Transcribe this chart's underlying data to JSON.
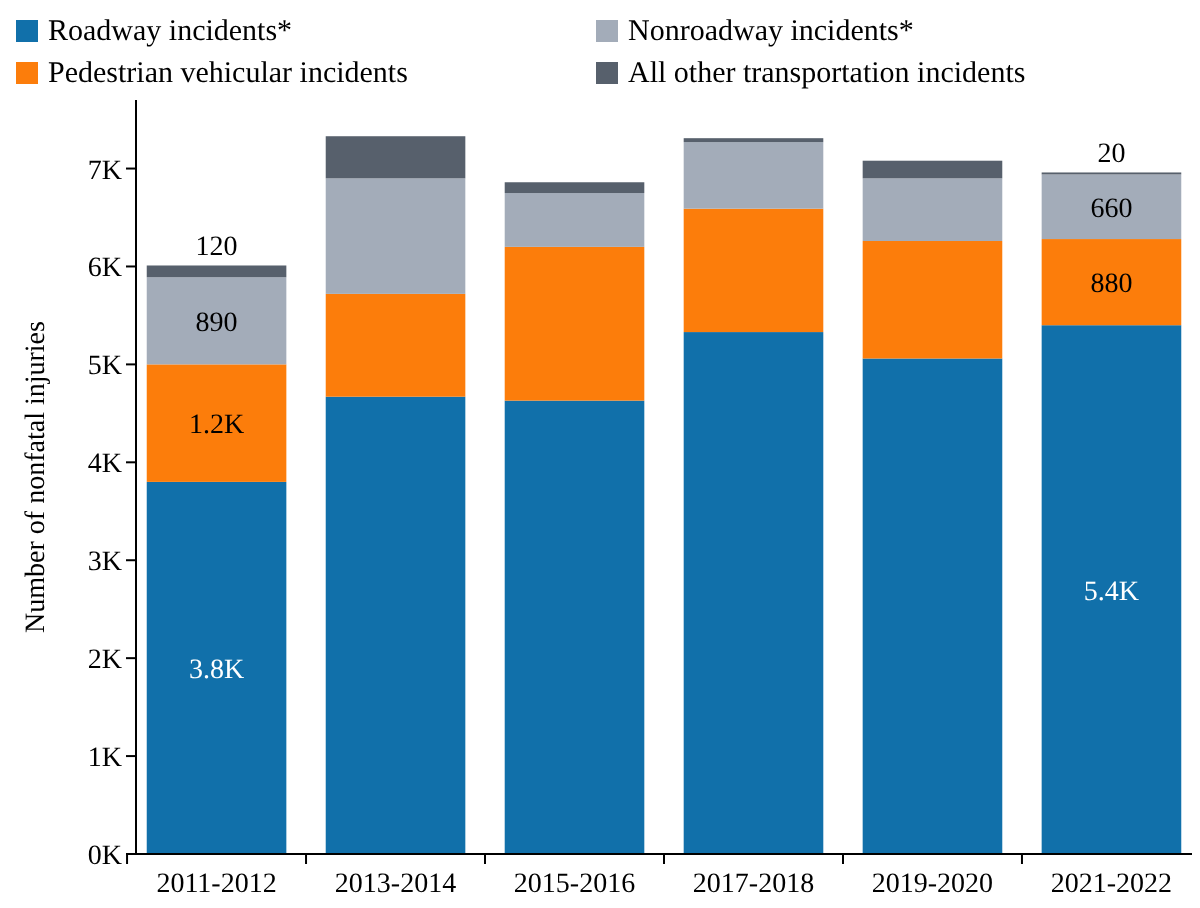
{
  "chart_data": {
    "type": "bar",
    "stacked": true,
    "ylabel": "Number of nonfatal injuries",
    "categories": [
      "2011-2012",
      "2013-2014",
      "2015-2016",
      "2017-2018",
      "2019-2020",
      "2021-2022"
    ],
    "series": [
      {
        "name": "Roadway incidents*",
        "color": "#1170aa",
        "values": [
          3800,
          4670,
          4630,
          5330,
          5060,
          5400
        ],
        "value_labels": [
          "3.8K",
          null,
          null,
          null,
          null,
          "5.4K"
        ]
      },
      {
        "name": "Pedestrian vehicular incidents",
        "color": "#fc7d0b",
        "values": [
          1200,
          1050,
          1570,
          1260,
          1200,
          880
        ],
        "value_labels": [
          "1.2K",
          null,
          null,
          null,
          null,
          "880"
        ]
      },
      {
        "name": "Nonroadway incidents*",
        "color": "#a3acb9",
        "values": [
          890,
          1180,
          550,
          680,
          640,
          660
        ],
        "value_labels": [
          "890",
          null,
          null,
          null,
          null,
          "660"
        ]
      },
      {
        "name": "All other transportation incidents",
        "color": "#57606c",
        "values": [
          120,
          430,
          110,
          40,
          180,
          20
        ],
        "value_labels": [
          "120",
          null,
          null,
          null,
          null,
          "20"
        ]
      }
    ],
    "ylim": [
      0,
      7700
    ],
    "yticks": [
      {
        "value": 0,
        "label": "0K"
      },
      {
        "value": 1000,
        "label": "1K"
      },
      {
        "value": 2000,
        "label": "2K"
      },
      {
        "value": 3000,
        "label": "3K"
      },
      {
        "value": 4000,
        "label": "4K"
      },
      {
        "value": 5000,
        "label": "5K"
      },
      {
        "value": 6000,
        "label": "6K"
      },
      {
        "value": 7000,
        "label": "7K"
      }
    ],
    "legend": "top",
    "grid": false
  }
}
